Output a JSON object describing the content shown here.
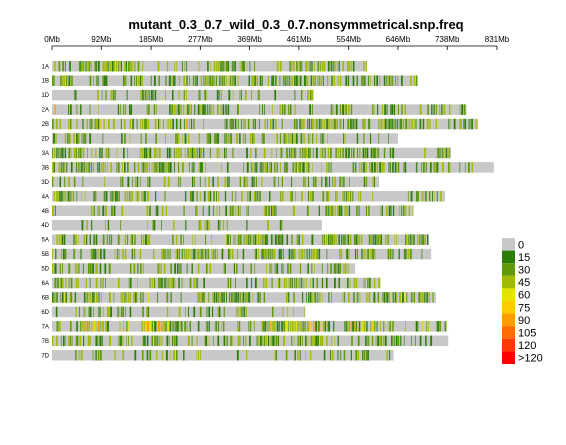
{
  "chart_data": {
    "type": "heatmap",
    "title": "mutant_0.3_0.7_wild_0.3_0.7.nonsymmetrical.snp.freq",
    "xlabel": "",
    "ylabel": "",
    "x_axis": {
      "unit": "Mb",
      "range": [
        0,
        831
      ],
      "ticks": [
        "0Mb",
        "92Mb",
        "185Mb",
        "277Mb",
        "369Mb",
        "461Mb",
        "554Mb",
        "646Mb",
        "738Mb",
        "831Mb"
      ],
      "tick_values": [
        0,
        92,
        185,
        277,
        369,
        461,
        554,
        646,
        738,
        831
      ],
      "position": "top"
    },
    "background_color": "#c8c8c8",
    "chromosomes": [
      {
        "name": "1A",
        "length_mb": 588,
        "density": 0.62,
        "tone": 0
      },
      {
        "name": "1B",
        "length_mb": 683,
        "density": 0.62,
        "tone": 0
      },
      {
        "name": "1D",
        "length_mb": 488,
        "density": 0.3,
        "tone": 0
      },
      {
        "name": "2A",
        "length_mb": 774,
        "density": 0.6,
        "tone": 0.1
      },
      {
        "name": "2B",
        "length_mb": 795,
        "density": 0.62,
        "tone": 0.1
      },
      {
        "name": "2D",
        "length_mb": 646,
        "density": 0.3,
        "tone": 0
      },
      {
        "name": "3A",
        "length_mb": 745,
        "density": 0.55,
        "tone": 0
      },
      {
        "name": "3B",
        "length_mb": 825,
        "density": 0.6,
        "tone": 0
      },
      {
        "name": "3D",
        "length_mb": 610,
        "density": 0.4,
        "tone": 0
      },
      {
        "name": "4A",
        "length_mb": 734,
        "density": 0.5,
        "tone": 0
      },
      {
        "name": "4B",
        "length_mb": 675,
        "density": 0.4,
        "tone": 0
      },
      {
        "name": "4D",
        "length_mb": 504,
        "density": 0.15,
        "tone": 0
      },
      {
        "name": "5A",
        "length_mb": 704,
        "density": 0.62,
        "tone": 0
      },
      {
        "name": "5B",
        "length_mb": 708,
        "density": 0.55,
        "tone": 0
      },
      {
        "name": "5D",
        "length_mb": 566,
        "density": 0.45,
        "tone": 0
      },
      {
        "name": "6A",
        "length_mb": 613,
        "density": 0.45,
        "tone": 0
      },
      {
        "name": "6B",
        "length_mb": 717,
        "density": 0.6,
        "tone": 0.1
      },
      {
        "name": "6D",
        "length_mb": 473,
        "density": 0.35,
        "tone": 0
      },
      {
        "name": "7A",
        "length_mb": 737,
        "density": 0.7,
        "tone": 0.5
      },
      {
        "name": "7B",
        "length_mb": 740,
        "density": 0.55,
        "tone": 0
      },
      {
        "name": "7D",
        "length_mb": 638,
        "density": 0.25,
        "tone": 0
      }
    ],
    "legend": {
      "placement": "right",
      "entries": [
        {
          "label": "0",
          "color": "#c8c8c8"
        },
        {
          "label": "15",
          "color": "#2b7d05"
        },
        {
          "label": "30",
          "color": "#5f9a07"
        },
        {
          "label": "45",
          "color": "#a1bb05"
        },
        {
          "label": "60",
          "color": "#e4e400"
        },
        {
          "label": "75",
          "color": "#ffcb00"
        },
        {
          "label": "90",
          "color": "#ff9d00"
        },
        {
          "label": "105",
          "color": "#ff6b00"
        },
        {
          "label": "120",
          "color": "#ff3a00"
        },
        {
          "label": ">120",
          "color": "#ff0000"
        }
      ]
    }
  }
}
